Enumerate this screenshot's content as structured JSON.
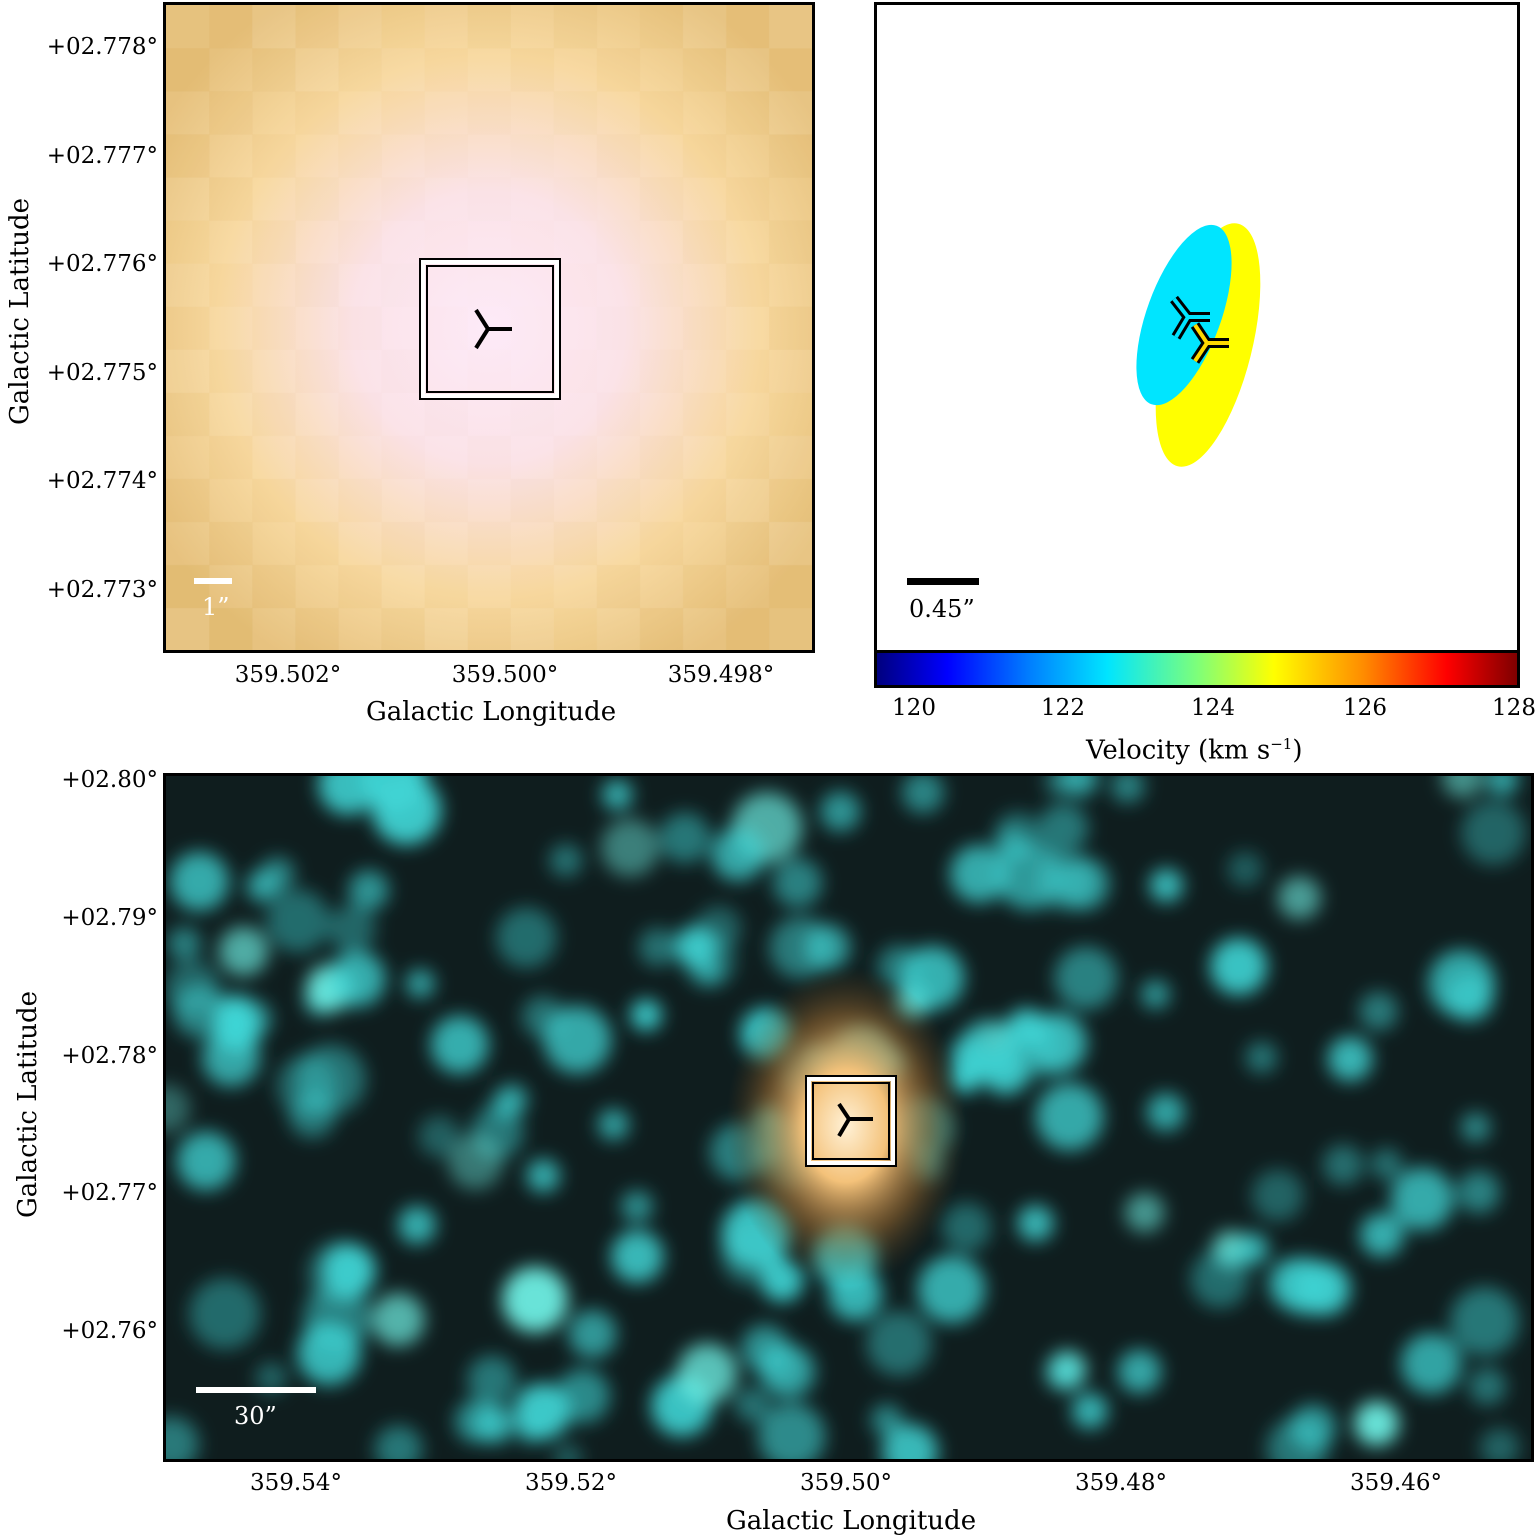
{
  "panel_top_left": {
    "ytick_labels": [
      "+02.778°",
      "+02.777°",
      "+02.776°",
      "+02.775°",
      "+02.774°",
      "+02.773°"
    ],
    "xtick_labels": [
      "359.502°",
      "359.500°",
      "359.498°"
    ],
    "xlabel": "Galactic Longitude",
    "ylabel": "Galactic Latitude",
    "scalebar_label": "1”",
    "colors": {
      "background": "#f4d796",
      "center": "#fce8f6"
    }
  },
  "panel_top_right": {
    "scalebar_label": "0.45”",
    "colors": {
      "ellipse_cyan": "#00e5ff",
      "ellipse_yellow": "#ffff00"
    }
  },
  "colorbar": {
    "tick_labels": [
      "120",
      "122",
      "124",
      "126",
      "128"
    ],
    "label": "Velocity (km s",
    "label_sup": "−1",
    "label_end": ")",
    "range": [
      119.5,
      128
    ]
  },
  "panel_bottom": {
    "ytick_labels": [
      "+02.80°",
      "+02.79°",
      "+02.78°",
      "+02.77°",
      "+02.76°"
    ],
    "xtick_labels": [
      "359.54°",
      "359.52°",
      "359.50°",
      "359.48°",
      "359.46°"
    ],
    "xlabel": "Galactic Longitude",
    "ylabel": "Galactic Latitude",
    "scalebar_label": "30”",
    "colors": {
      "background": "#0f1d1e",
      "blob": "#3fd4d4",
      "source": "#f0b45a"
    }
  }
}
